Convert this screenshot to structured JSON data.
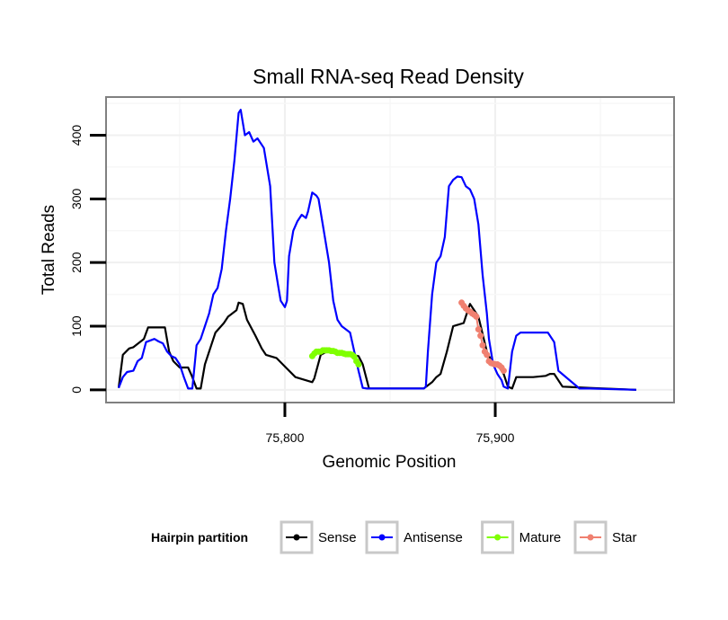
{
  "chart_data": {
    "type": "line",
    "title": "Small RNA-seq Read Density",
    "xlabel": "Genomic Position",
    "ylabel": "Total Reads",
    "xlim": [
      75715,
      75985
    ],
    "ylim": [
      -20,
      460
    ],
    "x_ticks": [
      75800,
      75900
    ],
    "x_tick_labels": [
      "75,800",
      "75,900"
    ],
    "y_ticks": [
      0,
      100,
      200,
      300,
      400
    ],
    "y_tick_labels": [
      "0",
      "100",
      "200",
      "300",
      "400"
    ],
    "grid": true,
    "legend_position": "bottom",
    "legend_title": "Hairpin partition",
    "series": [
      {
        "name": "Sense",
        "color": "#000000",
        "marker": false,
        "x": [
          75721,
          75723,
          75726,
          75728,
          75733,
          75735,
          75739,
          75743,
          75745,
          75747,
          75750,
          75754,
          75756,
          75758,
          75760,
          75762,
          75765,
          75767,
          75771,
          75773,
          75777,
          75778,
          75780,
          75782,
          75786,
          75789,
          75791,
          75796,
          75799,
          75805,
          75813,
          75814,
          75817,
          75820,
          75823,
          75826,
          75829,
          75832,
          75835,
          75837,
          75840,
          75852,
          75866,
          75870,
          75872,
          75874,
          75877,
          75880,
          75885,
          75888,
          75892,
          75896,
          75899,
          75902,
          75904,
          75906,
          75908,
          75910,
          75914,
          75918,
          75924,
          75926,
          75928,
          75932,
          75945,
          75967
        ],
        "y": [
          3,
          55,
          65,
          67,
          80,
          98,
          98,
          98,
          60,
          45,
          35,
          35,
          20,
          2,
          2,
          40,
          70,
          90,
          105,
          115,
          125,
          137,
          135,
          110,
          85,
          65,
          55,
          50,
          40,
          20,
          12,
          18,
          55,
          60,
          60,
          60,
          58,
          55,
          53,
          40,
          2,
          2,
          2,
          12,
          20,
          25,
          60,
          100,
          105,
          135,
          115,
          60,
          40,
          35,
          25,
          5,
          2,
          20,
          20,
          20,
          22,
          25,
          25,
          5,
          3,
          0
        ]
      },
      {
        "name": "Antisense",
        "color": "#0000ff",
        "marker": false,
        "x": [
          75721,
          75723,
          75725,
          75728,
          75730,
          75732,
          75734,
          75738,
          75740,
          75742,
          75744,
          75746,
          75748,
          75750,
          75752,
          75754,
          75756,
          75758,
          75760,
          75762,
          75764,
          75766,
          75768,
          75770,
          75772,
          75774,
          75776,
          75778,
          75779,
          75781,
          75783,
          75785,
          75787,
          75790,
          75793,
          75795,
          75797,
          75798,
          75800,
          75801,
          75802,
          75804,
          75806,
          75808,
          75810,
          75811,
          75813,
          75815,
          75816,
          75818,
          75821,
          75823,
          75825,
          75827,
          75829,
          75831,
          75835,
          75837,
          75839,
          75850,
          75866,
          75867,
          75868,
          75870,
          75872,
          75874,
          75876,
          75877,
          75878,
          75880,
          75882,
          75884,
          75886,
          75888,
          75890,
          75892,
          75894,
          75896,
          75897,
          75899,
          75901,
          75903,
          75904,
          75906,
          75908,
          75910,
          75912,
          75925,
          75928,
          75930,
          75940,
          75945,
          75967
        ],
        "y": [
          3,
          20,
          28,
          30,
          45,
          50,
          75,
          80,
          76,
          73,
          60,
          53,
          50,
          40,
          20,
          2,
          2,
          70,
          80,
          100,
          120,
          150,
          160,
          190,
          250,
          300,
          360,
          435,
          440,
          400,
          405,
          390,
          395,
          380,
          320,
          200,
          160,
          140,
          130,
          140,
          210,
          250,
          265,
          275,
          270,
          280,
          310,
          305,
          300,
          260,
          200,
          140,
          110,
          100,
          95,
          90,
          30,
          3,
          2,
          2,
          2,
          5,
          60,
          150,
          200,
          210,
          240,
          280,
          320,
          330,
          335,
          334,
          320,
          315,
          300,
          260,
          180,
          120,
          80,
          40,
          25,
          15,
          5,
          2,
          60,
          85,
          90,
          90,
          75,
          30,
          2,
          2,
          0
        ]
      },
      {
        "name": "Mature",
        "color": "#7fff00",
        "marker": true,
        "x": [
          75813,
          75814,
          75815,
          75816,
          75817,
          75818,
          75819,
          75820,
          75821,
          75822,
          75823,
          75824,
          75825,
          75826,
          75827,
          75828,
          75829,
          75830,
          75831,
          75832,
          75833,
          75834,
          75835
        ],
        "y": [
          53,
          57,
          60,
          60,
          60,
          62,
          62,
          62,
          62,
          61,
          61,
          60,
          58,
          58,
          58,
          57,
          56,
          56,
          56,
          55,
          52,
          45,
          40
        ]
      },
      {
        "name": "Star",
        "color": "#f08070",
        "marker": true,
        "x": [
          75884,
          75885,
          75886,
          75887,
          75888,
          75889,
          75890,
          75891,
          75892,
          75893,
          75894,
          75895,
          75896,
          75897,
          75898,
          75899,
          75900,
          75901,
          75902,
          75903,
          75904
        ],
        "y": [
          137,
          132,
          128,
          125,
          123,
          120,
          118,
          115,
          95,
          85,
          70,
          60,
          55,
          45,
          42,
          41,
          40,
          40,
          38,
          35,
          30
        ]
      }
    ]
  }
}
